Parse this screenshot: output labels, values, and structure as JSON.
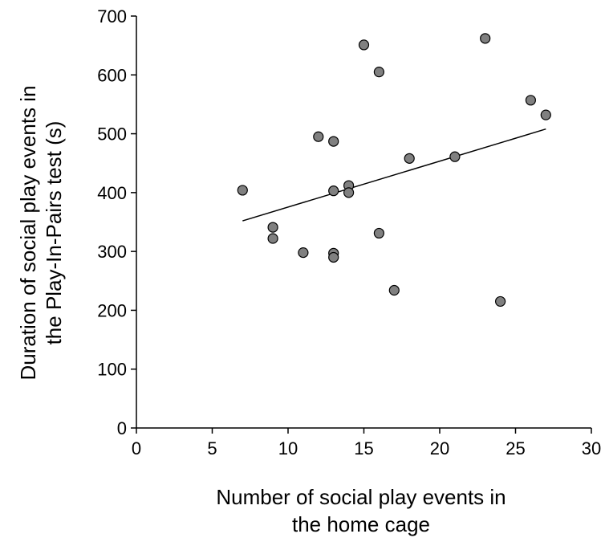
{
  "chart_data": {
    "type": "scatter",
    "title": "",
    "xlabel_lines": [
      "Number of social play events in",
      "the home cage"
    ],
    "ylabel_lines": [
      "Duration of social play events in",
      "the Play-In-Pairs test (s)"
    ],
    "xlim": [
      0,
      30
    ],
    "ylim": [
      0,
      700
    ],
    "xticks": [
      0,
      5,
      10,
      15,
      20,
      25,
      30
    ],
    "yticks": [
      0,
      100,
      200,
      300,
      400,
      500,
      600,
      700
    ],
    "grid": false,
    "point_color": "#808080",
    "points": [
      {
        "x": 7,
        "y": 404
      },
      {
        "x": 9,
        "y": 341
      },
      {
        "x": 9,
        "y": 322
      },
      {
        "x": 11,
        "y": 298
      },
      {
        "x": 12,
        "y": 495
      },
      {
        "x": 13,
        "y": 487
      },
      {
        "x": 13,
        "y": 403
      },
      {
        "x": 13,
        "y": 297
      },
      {
        "x": 13,
        "y": 290
      },
      {
        "x": 14,
        "y": 412
      },
      {
        "x": 14,
        "y": 400
      },
      {
        "x": 15,
        "y": 651
      },
      {
        "x": 16,
        "y": 605
      },
      {
        "x": 16,
        "y": 331
      },
      {
        "x": 17,
        "y": 234
      },
      {
        "x": 18,
        "y": 458
      },
      {
        "x": 21,
        "y": 461
      },
      {
        "x": 23,
        "y": 662
      },
      {
        "x": 24,
        "y": 215
      },
      {
        "x": 26,
        "y": 557
      },
      {
        "x": 27,
        "y": 532
      }
    ],
    "trendline": {
      "x": [
        7,
        27
      ],
      "y": [
        352,
        508
      ]
    }
  }
}
